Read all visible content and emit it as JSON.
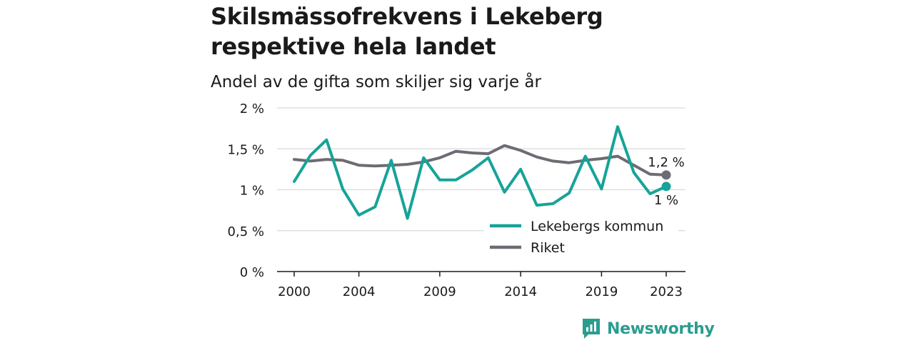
{
  "header": {
    "title": "Skilsmässofrekvens i Lekeberg respektive hela landet",
    "subtitle": "Andel av de gifta som skiljer sig varje år"
  },
  "brand": {
    "name": "Newsworthy",
    "color": "#2a9d8f",
    "icon": "newsworthy-logo-icon"
  },
  "chart_data": {
    "type": "line",
    "title": "Skilsmässofrekvens i Lekeberg respektive hela landet",
    "subtitle": "Andel av de gifta som skiljer sig varje år",
    "xlabel": "",
    "ylabel": "",
    "xlim": [
      2000,
      2023
    ],
    "ylim": [
      0,
      2
    ],
    "x_ticks": [
      2000,
      2004,
      2009,
      2014,
      2019,
      2023
    ],
    "x_tick_labels": [
      "2000",
      "2004",
      "2009",
      "2014",
      "2019",
      "2023"
    ],
    "y_ticks": [
      0,
      0.5,
      1,
      1.5,
      2
    ],
    "y_tick_labels": [
      "0 %",
      "0,5 %",
      "1 %",
      "1,5 %",
      "2 %"
    ],
    "grid": true,
    "legend_position": "bottom-right",
    "x": [
      2000,
      2001,
      2002,
      2003,
      2004,
      2005,
      2006,
      2007,
      2008,
      2009,
      2010,
      2011,
      2012,
      2013,
      2014,
      2015,
      2016,
      2017,
      2018,
      2019,
      2020,
      2021,
      2022,
      2023
    ],
    "series": [
      {
        "name": "Lekebergs kommun",
        "color": "#17a398",
        "values": [
          1.1,
          1.42,
          1.61,
          1.01,
          0.69,
          0.79,
          1.36,
          0.65,
          1.39,
          1.12,
          1.12,
          1.24,
          1.39,
          0.97,
          1.25,
          0.81,
          0.83,
          0.96,
          1.41,
          1.01,
          1.77,
          1.21,
          0.95,
          1.04
        ],
        "end_label": "1 %"
      },
      {
        "name": "Riket",
        "color": "#6e6b73",
        "values": [
          1.37,
          1.35,
          1.37,
          1.36,
          1.3,
          1.29,
          1.3,
          1.31,
          1.34,
          1.39,
          1.47,
          1.45,
          1.44,
          1.54,
          1.48,
          1.4,
          1.35,
          1.33,
          1.36,
          1.38,
          1.41,
          1.3,
          1.19,
          1.18
        ],
        "end_label": "1,2 %"
      }
    ]
  }
}
